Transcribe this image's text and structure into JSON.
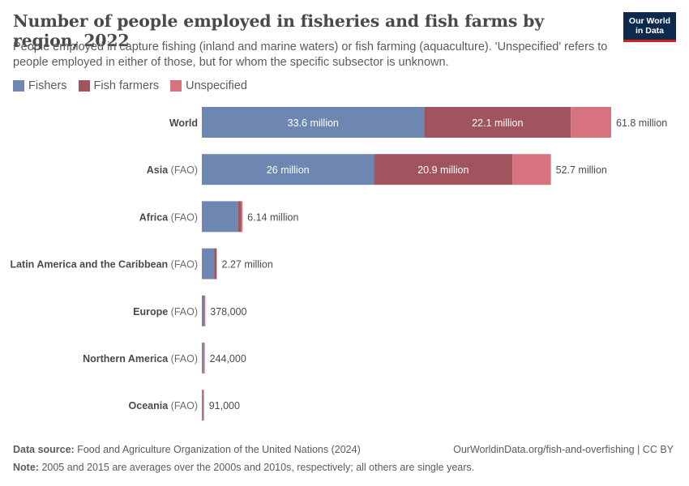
{
  "header": {
    "title": "Number of people employed in fisheries and fish farms by region, 2022",
    "subtitle": "People employed in capture fishing (inland and marine waters) or fish farming (aquaculture). 'Unspecified' refers to people employed in either of those, but for whom the specific subsector is unknown.",
    "logo_line1": "Our World",
    "logo_line2": "in Data"
  },
  "colors": {
    "Fishers": "#6d87b2",
    "Fish farmers": "#a2545e",
    "Unspecified": "#d6737f"
  },
  "chart_data": {
    "type": "bar",
    "orientation": "horizontal",
    "stacked": true,
    "categories": [
      {
        "name": "World",
        "suffix": ""
      },
      {
        "name": "Asia",
        "suffix": " (FAO)"
      },
      {
        "name": "Africa",
        "suffix": " (FAO)"
      },
      {
        "name": "Latin America and the Caribbean",
        "suffix": " (FAO)"
      },
      {
        "name": "Europe",
        "suffix": " (FAO)"
      },
      {
        "name": "Northern America",
        "suffix": " (FAO)"
      },
      {
        "name": "Oceania",
        "suffix": " (FAO)"
      }
    ],
    "series": [
      {
        "name": "Fishers",
        "values": [
          33600000,
          26000000,
          5500000,
          1900000,
          300000,
          220000,
          83000
        ],
        "labels": [
          "33.6 million",
          "26 million",
          "",
          "",
          "",
          "",
          ""
        ]
      },
      {
        "name": "Fish farmers",
        "values": [
          22100000,
          20900000,
          470000,
          320000,
          70000,
          22000,
          7000
        ],
        "labels": [
          "22.1 million",
          "20.9 million",
          "",
          "",
          "",
          "",
          ""
        ]
      },
      {
        "name": "Unspecified",
        "values": [
          6100000,
          5800000,
          170000,
          50000,
          8000,
          2000,
          1000
        ],
        "labels": [
          "",
          "",
          "",
          "",
          "",
          "",
          ""
        ]
      }
    ],
    "totals": [
      61800000,
      52700000,
      6140000,
      2270000,
      378000,
      244000,
      91000
    ],
    "total_labels": [
      "61.8 million",
      "52.7 million",
      "6.14 million",
      "2.27 million",
      "378,000",
      "244,000",
      "91,000"
    ],
    "xlim": [
      0,
      61800000
    ],
    "legend_position": "top-left",
    "grid": false
  },
  "footer": {
    "source_label": "Data source:",
    "source_text": "Food and Agriculture Organization of the United Nations (2024)",
    "url_text": "OurWorldinData.org/fish-and-overfishing | CC BY",
    "note_label": "Note:",
    "note_text": "2005 and 2015 are averages over the 2000s and 2010s, respectively; all others are single years."
  }
}
